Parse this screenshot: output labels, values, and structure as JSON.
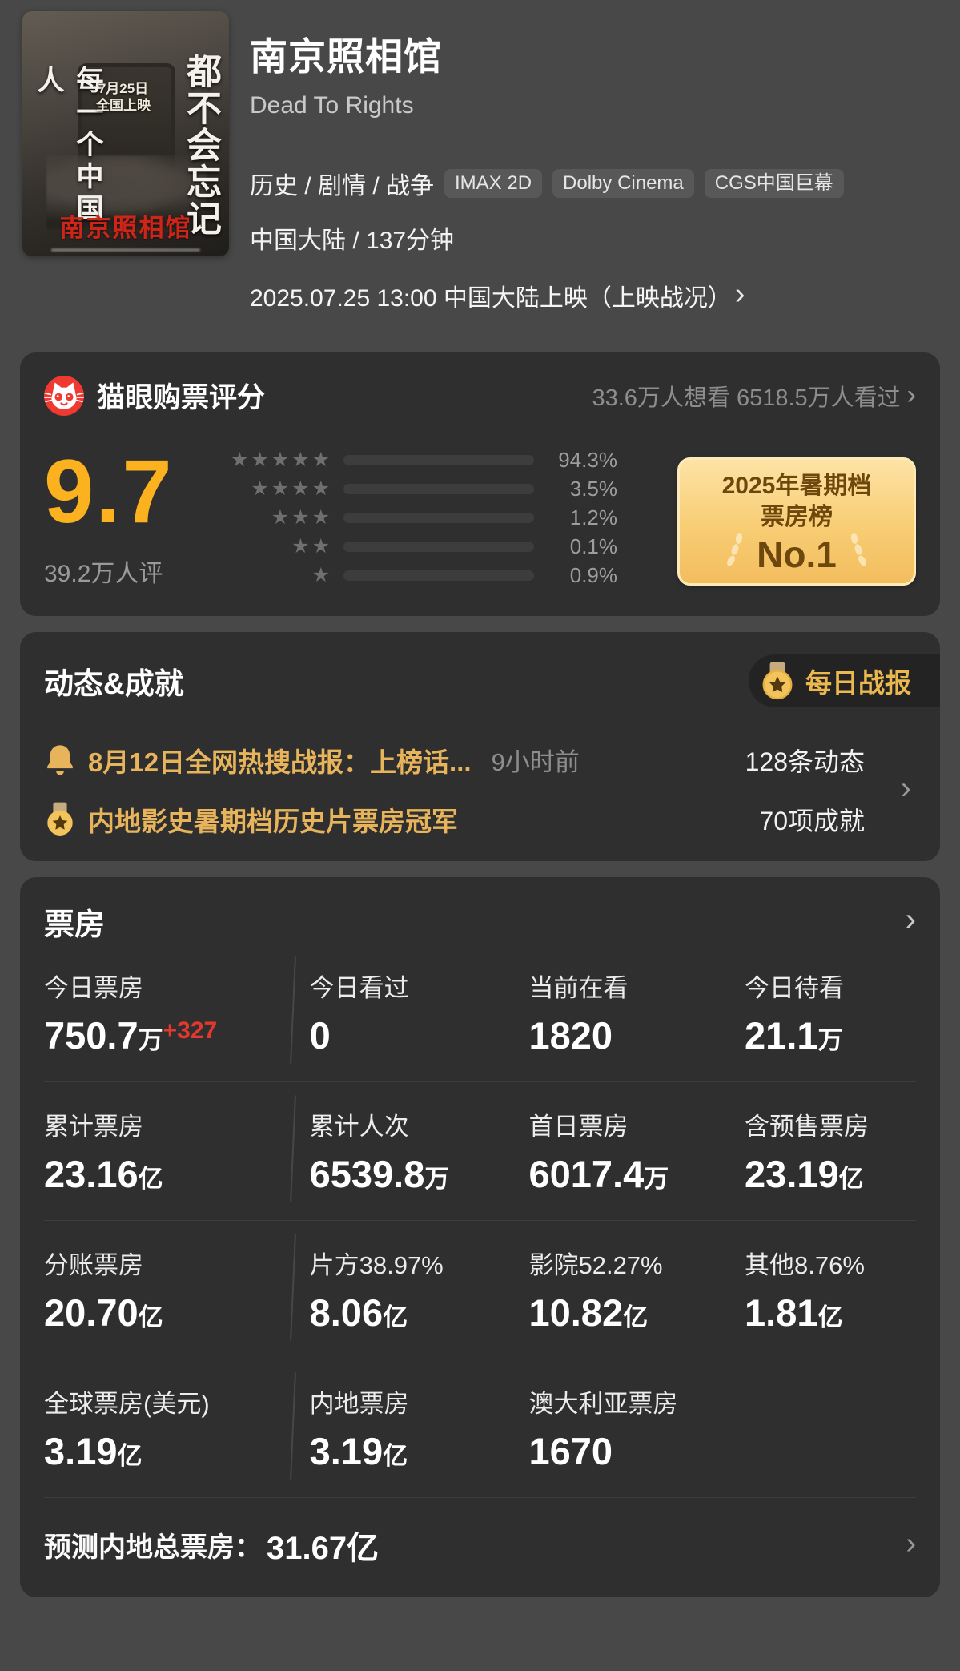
{
  "ui": {
    "chevron": "›"
  },
  "colors": {
    "accent_yellow": "#fcb11f",
    "gold_text": "#e7b45c",
    "delta_red": "#e2382e",
    "card_bg": "#2f2f2f",
    "page_bg": "#484848",
    "award_gradient_top": "#fde3a6",
    "award_gradient_bottom": "#f3bd5e"
  },
  "header": {
    "title": "南京照相馆",
    "english_title": "Dead To Rights",
    "genres": "历史 / 剧情 / 战争",
    "format_badges": [
      "IMAX 2D",
      "Dolby Cinema",
      "CGS中国巨幕"
    ],
    "region_duration": "中国大陆 / 137分钟",
    "release_line": "2025.07.25 13:00 中国大陆上映（上映战况）",
    "poster": {
      "left_vertical_text": "每一个中国人",
      "right_vertical_text": "都不会忘记",
      "release_note": "7月25日\n全国上映",
      "poster_title": "南京照相馆"
    }
  },
  "rating_card": {
    "title": "猫眼购票评分",
    "stats": "33.6万人想看 6518.5万人看过",
    "score": "9.7",
    "raters": "39.2万人评",
    "distribution": [
      {
        "stars": "★★★★★",
        "pct": "94.3%",
        "pct_num": 94.3
      },
      {
        "stars": "★★★★",
        "pct": "3.5%",
        "pct_num": 3.5
      },
      {
        "stars": "★★★",
        "pct": "1.2%",
        "pct_num": 1.2
      },
      {
        "stars": "★★",
        "pct": "0.1%",
        "pct_num": 0.1
      },
      {
        "stars": "★",
        "pct": "0.9%",
        "pct_num": 0.9
      }
    ],
    "award_badge": {
      "line1": "2025年暑期档",
      "line2": "票房榜",
      "line3": "No.1"
    }
  },
  "news_card": {
    "title": "动态&成就",
    "daily_report_button": "每日战报",
    "rows": [
      {
        "text": "8月12日全网热搜战报：上榜话...",
        "time": "9小时前",
        "count": "128条动态"
      },
      {
        "text": "内地影史暑期档历史片票房冠军",
        "time": "",
        "count": "70项成就"
      }
    ]
  },
  "boxoffice_card": {
    "title": "票房",
    "rows": [
      [
        {
          "label": "今日票房",
          "num": "750.7",
          "unit": "万",
          "delta": "+327"
        },
        {
          "label": "今日看过",
          "num": "0"
        },
        {
          "label": "当前在看",
          "num": "1820"
        },
        {
          "label": "今日待看",
          "num": "21.1",
          "unit": "万"
        }
      ],
      [
        {
          "label": "累计票房",
          "num": "23.16",
          "unit": "亿"
        },
        {
          "label": "累计人次",
          "num": "6539.8",
          "unit": "万"
        },
        {
          "label": "首日票房",
          "num": "6017.4",
          "unit": "万"
        },
        {
          "label": "含预售票房",
          "num": "23.19",
          "unit": "亿"
        }
      ],
      [
        {
          "label": "分账票房",
          "num": "20.70",
          "unit": "亿"
        },
        {
          "label": "片方38.97%",
          "num": "8.06",
          "unit": "亿"
        },
        {
          "label": "影院52.27%",
          "num": "10.82",
          "unit": "亿"
        },
        {
          "label": "其他8.76%",
          "num": "1.81",
          "unit": "亿"
        }
      ],
      [
        {
          "label": "全球票房(美元)",
          "num": "3.19",
          "unit": "亿"
        },
        {
          "label": "内地票房",
          "num": "3.19",
          "unit": "亿"
        },
        {
          "label": "澳大利亚票房",
          "num": "1670"
        }
      ]
    ],
    "prediction_label": "预测内地总票房：",
    "prediction_value": "31.67亿"
  }
}
